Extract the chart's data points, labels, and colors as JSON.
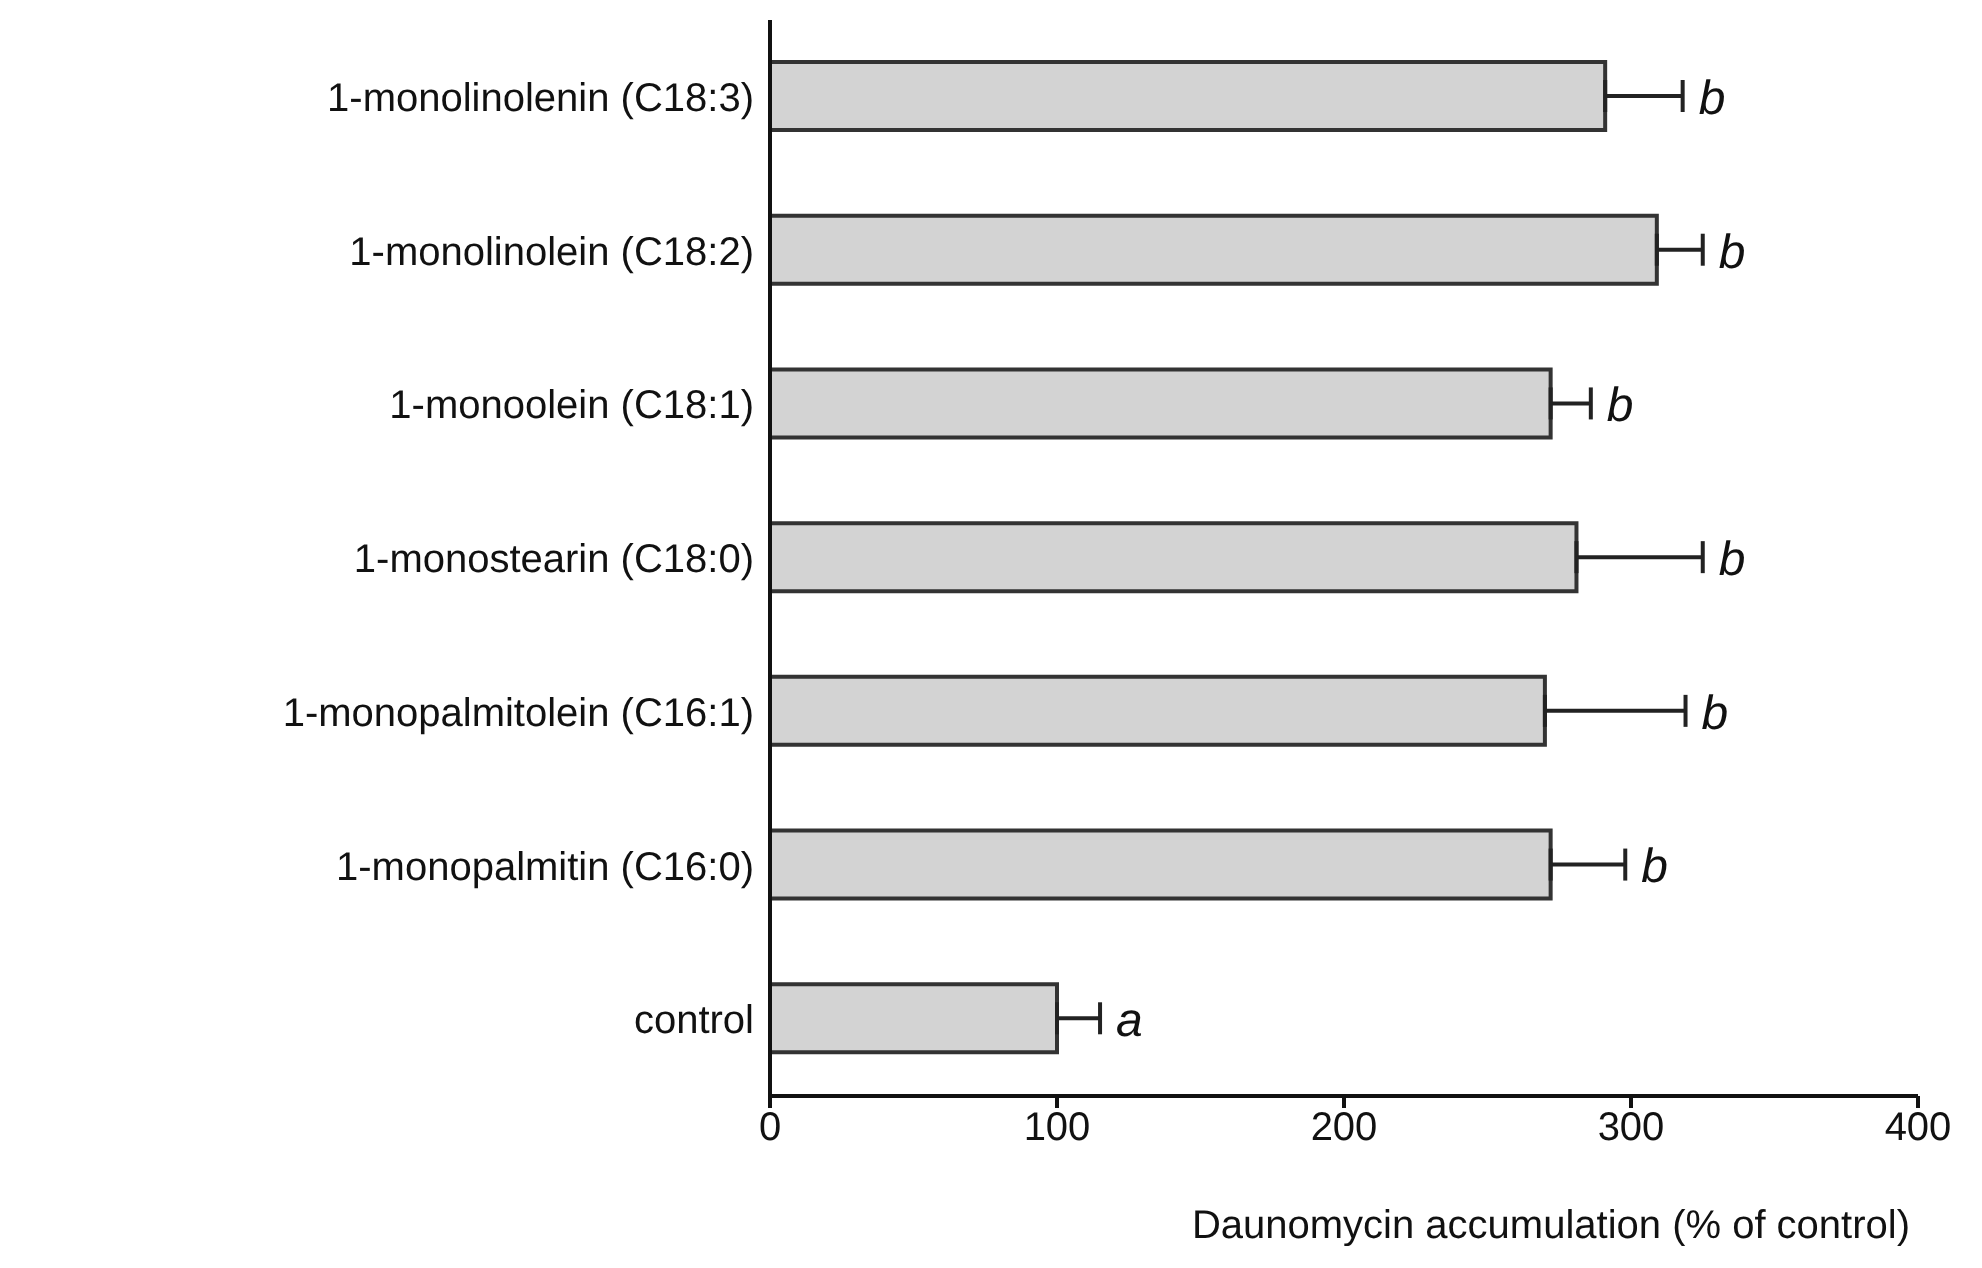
{
  "chart_data": {
    "type": "bar",
    "orientation": "horizontal",
    "xlabel": "Daunomycin accumulation (% of control)",
    "categories": [
      "1-monolinolenin (C18:3)",
      "1-monolinolein (C18:2)",
      "1-monoolein (C18:1)",
      "1-monostearin (C18:0)",
      "1-monopalmitolein (C16:1)",
      "1-monopalmitin (C16:0)",
      "control"
    ],
    "values": [
      291,
      309,
      272,
      281,
      270,
      272,
      100
    ],
    "errors": [
      [
        291,
        318
      ],
      [
        309,
        325
      ],
      [
        272,
        286
      ],
      [
        281,
        325
      ],
      [
        270,
        319
      ],
      [
        272,
        298
      ],
      [
        100,
        115
      ]
    ],
    "color": "#d3d3d3",
    "xlim": [
      0,
      400
    ],
    "xticks": [
      0,
      100,
      200,
      300,
      400
    ],
    "grid": false,
    "legend": false,
    "annotations": [
      {
        "text": "b",
        "x": 318,
        "y": "1-monolinolenin (C18:3)"
      },
      {
        "text": "b",
        "x": 325,
        "y": "1-monolinolein (C18:2)"
      },
      {
        "text": "b",
        "x": 286,
        "y": "1-monoolein (C18:1)"
      },
      {
        "text": "b",
        "x": 325,
        "y": "1-monostearin (C18:0)"
      },
      {
        "text": "b",
        "x": 319,
        "y": "1-monopalmitolein (C16:1)"
      },
      {
        "text": "b",
        "x": 298,
        "y": "1-monopalmitin (C16:0)"
      },
      {
        "text": "a",
        "x": 115,
        "y": "control"
      }
    ]
  }
}
